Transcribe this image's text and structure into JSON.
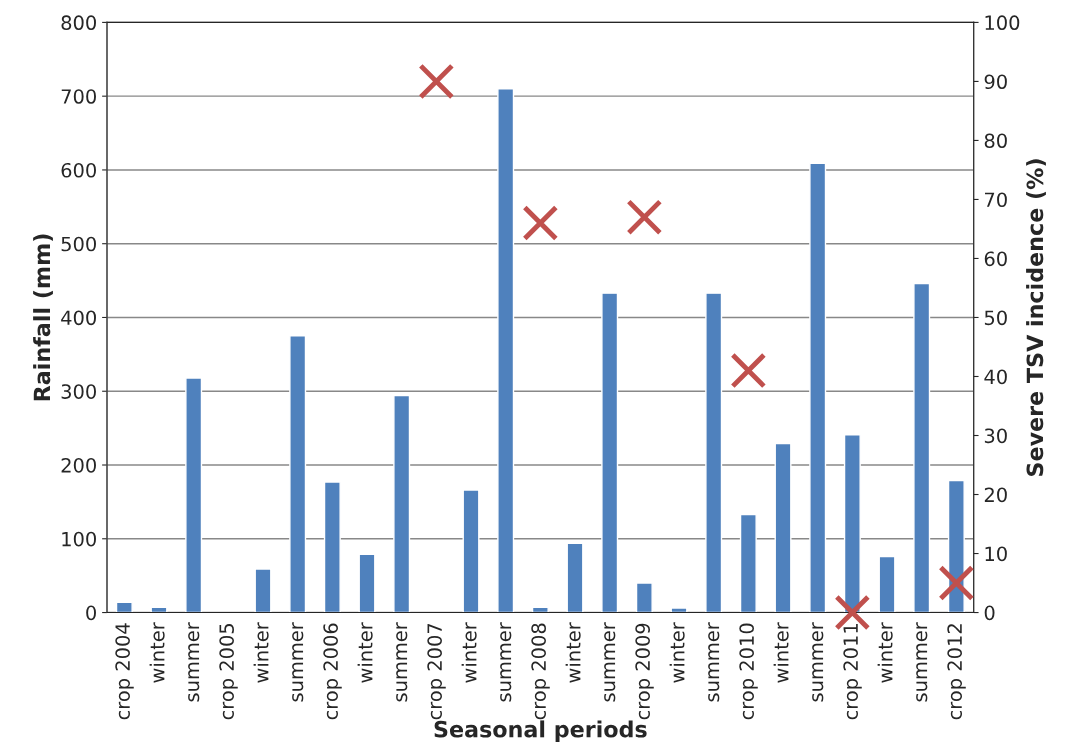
{
  "chart_data": {
    "type": "bar",
    "xlabel": "Seasonal periods",
    "ylabel": "Rainfall (mm)",
    "y2label": "Severe TSV incidence (%)",
    "categories": [
      "crop 2004",
      "winter",
      "summer",
      "crop 2005",
      "winter",
      "summer",
      "crop 2006",
      "winter",
      "summer",
      "crop 2007",
      "winter",
      "summer",
      "crop 2008",
      "winter",
      "summer",
      "crop 2009",
      "winter",
      "summer",
      "crop 2010",
      "winter",
      "summer",
      "crop 2011",
      "winter",
      "summer",
      "crop 2012"
    ],
    "series": [
      {
        "color": "#4f81bd",
        "values": [
          14,
          7,
          318,
          null,
          59,
          375,
          177,
          79,
          294,
          null,
          166,
          710,
          7,
          94,
          433,
          40,
          6,
          433,
          133,
          229,
          609,
          241,
          76,
          446,
          179
        ]
      },
      {
        "type": "scatter",
        "axis": "y2",
        "marker": "cross",
        "color": "#c0504d",
        "values": [
          null,
          null,
          null,
          null,
          null,
          null,
          null,
          null,
          null,
          90,
          null,
          null,
          66,
          null,
          null,
          67,
          null,
          null,
          41,
          null,
          null,
          0,
          null,
          null,
          5
        ]
      }
    ],
    "ylim": [
      0,
      800
    ],
    "yticks": [
      0,
      100,
      200,
      300,
      400,
      500,
      600,
      700,
      800
    ],
    "y2lim": [
      0,
      100
    ],
    "y2ticks": [
      0,
      10,
      20,
      30,
      40,
      50,
      60,
      70,
      80,
      90,
      100
    ],
    "grid": "y"
  }
}
